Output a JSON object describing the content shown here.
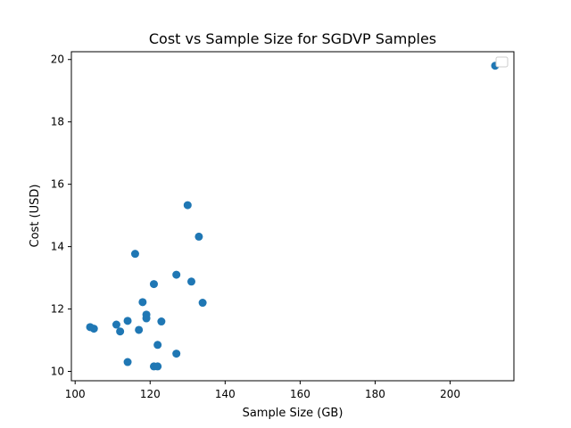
{
  "chart_data": {
    "type": "scatter",
    "title": "Cost vs Sample Size for SGDVP Samples",
    "xlabel": "Sample Size (GB)",
    "ylabel": "Cost (USD)",
    "xlim": [
      99,
      217
    ],
    "ylim": [
      9.7,
      20.25
    ],
    "xticks": [
      100,
      120,
      140,
      160,
      180,
      200
    ],
    "yticks": [
      10,
      12,
      14,
      16,
      18,
      20
    ],
    "grid": false,
    "legend": "top-right (empty)",
    "marker_color": "#1f77b4",
    "series": [
      {
        "points": [
          {
            "x": 104,
            "y": 11.42
          },
          {
            "x": 105,
            "y": 11.37
          },
          {
            "x": 111,
            "y": 11.5
          },
          {
            "x": 112,
            "y": 11.28
          },
          {
            "x": 114,
            "y": 11.62
          },
          {
            "x": 114,
            "y": 10.3
          },
          {
            "x": 116,
            "y": 13.77
          },
          {
            "x": 117,
            "y": 11.33
          },
          {
            "x": 118,
            "y": 12.22
          },
          {
            "x": 119,
            "y": 11.82
          },
          {
            "x": 119,
            "y": 11.7
          },
          {
            "x": 121,
            "y": 12.8
          },
          {
            "x": 121,
            "y": 10.16
          },
          {
            "x": 122,
            "y": 10.85
          },
          {
            "x": 122,
            "y": 10.16
          },
          {
            "x": 123,
            "y": 11.6
          },
          {
            "x": 127,
            "y": 13.1
          },
          {
            "x": 127,
            "y": 10.57
          },
          {
            "x": 130,
            "y": 15.33
          },
          {
            "x": 131,
            "y": 12.88
          },
          {
            "x": 133,
            "y": 14.32
          },
          {
            "x": 134,
            "y": 12.2
          },
          {
            "x": 212,
            "y": 19.8
          }
        ]
      }
    ]
  }
}
